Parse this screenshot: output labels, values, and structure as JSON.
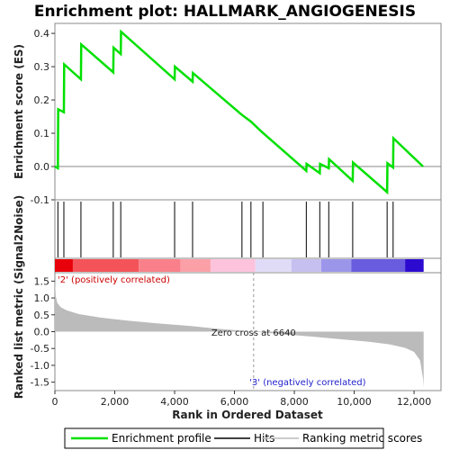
{
  "chart_data": {
    "type": "line",
    "title": "Enrichment plot: HALLMARK_ANGIOGENESIS",
    "es_panel": {
      "ylabel": "Enrichment score (ES)",
      "ylim": [
        -0.1,
        0.43
      ],
      "yticks": [
        "0.4",
        "0.3",
        "0.2",
        "0.1",
        "0.0",
        "-0.1"
      ],
      "ytick_values": [
        0.4,
        0.3,
        0.2,
        0.1,
        0.0,
        -0.1
      ],
      "grid": false,
      "series": [
        {
          "name": "Enrichment profile",
          "color": "#00e000",
          "x": [
            0,
            100,
            110,
            300,
            310,
            870,
            880,
            1950,
            1960,
            2200,
            2210,
            4000,
            4010,
            4600,
            4610,
            6250,
            6550,
            6900,
            8400,
            8410,
            8850,
            8860,
            9150,
            9160,
            9950,
            9960,
            11100,
            11110,
            11300,
            11310,
            12300
          ],
          "y": [
            0.0,
            -0.005,
            0.172,
            0.163,
            0.307,
            0.262,
            0.367,
            0.283,
            0.357,
            0.338,
            0.405,
            0.262,
            0.3,
            0.255,
            0.281,
            0.155,
            0.135,
            0.105,
            -0.013,
            0.008,
            -0.02,
            0.008,
            -0.005,
            0.022,
            -0.043,
            0.012,
            -0.077,
            0.01,
            -0.003,
            0.085,
            0.0
          ]
        }
      ]
    },
    "hits": [
      100,
      300,
      870,
      1950,
      2200,
      4000,
      4600,
      6250,
      6550,
      6950,
      8400,
      8850,
      9150,
      9950,
      11100,
      11300
    ],
    "ranking_panel": {
      "ylabel": "Ranked list metric (Signal2Noise)",
      "xlabel": "Rank in Ordered Dataset",
      "ylim": [
        -1.75,
        1.75
      ],
      "yticks": [
        "1.5",
        "1.0",
        "0.5",
        "0.0",
        "-0.5",
        "-1.0",
        "-1.5"
      ],
      "ytick_values": [
        1.5,
        1.0,
        0.5,
        0.0,
        -0.5,
        -1.0,
        -1.5
      ],
      "xlim": [
        0,
        12900
      ],
      "xticks": [
        "0",
        "2,000",
        "4,000",
        "6,000",
        "8,000",
        "10,000",
        "12,000"
      ],
      "xtick_values": [
        0,
        2000,
        4000,
        6000,
        8000,
        10000,
        12000
      ],
      "metric_x": [
        0,
        30,
        80,
        200,
        400,
        800,
        1500,
        2500,
        3500,
        4500,
        5500,
        6640,
        7500,
        8500,
        9500,
        10500,
        11200,
        11700,
        12000,
        12200,
        12300,
        12320
      ],
      "metric_y": [
        1.5,
        1.05,
        0.85,
        0.72,
        0.63,
        0.52,
        0.42,
        0.32,
        0.24,
        0.17,
        0.08,
        0.0,
        -0.07,
        -0.14,
        -0.22,
        -0.3,
        -0.38,
        -0.48,
        -0.6,
        -0.85,
        -1.4,
        -1.65
      ],
      "zero_cross_label": "Zero cross at 6640",
      "zero_cross": 6640,
      "pos_label": "'2' (positively correlated)",
      "neg_label": "'3' (negatively correlated)"
    },
    "colorbar": [
      {
        "start": 0,
        "end": 600,
        "color": "#e8000a"
      },
      {
        "start": 600,
        "end": 2800,
        "color": "#f45459"
      },
      {
        "start": 2800,
        "end": 4200,
        "color": "#f9808a"
      },
      {
        "start": 4200,
        "end": 5200,
        "color": "#fca0a8"
      },
      {
        "start": 5200,
        "end": 6700,
        "color": "#fdc3dc"
      },
      {
        "start": 6700,
        "end": 7900,
        "color": "#e0dcf8"
      },
      {
        "start": 7900,
        "end": 8900,
        "color": "#c6c0f0"
      },
      {
        "start": 8900,
        "end": 9900,
        "color": "#9c96ea"
      },
      {
        "start": 9900,
        "end": 11700,
        "color": "#6a5cdf"
      },
      {
        "start": 11700,
        "end": 12320,
        "color": "#2d0ad0"
      }
    ],
    "legend": [
      {
        "label": "Enrichment profile",
        "color": "#00e000"
      },
      {
        "label": "Hits",
        "color": "#000000"
      },
      {
        "label": "Ranking metric scores",
        "color": "#bbbbbb"
      }
    ]
  }
}
